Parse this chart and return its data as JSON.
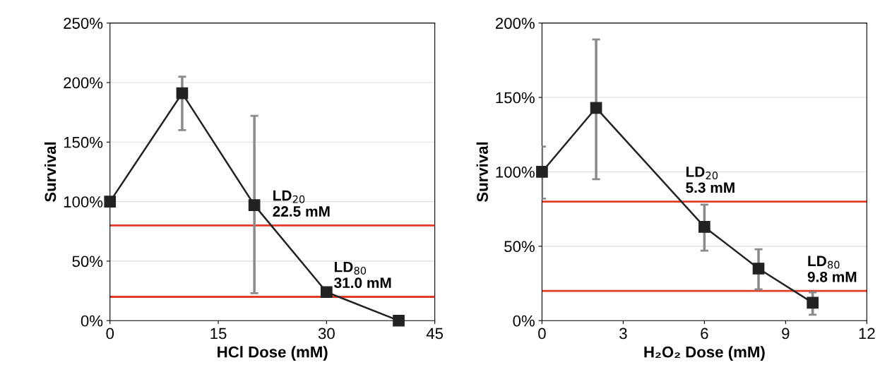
{
  "chart_data": [
    {
      "type": "line",
      "xlabel": "HCl Dose (mM)",
      "ylabel": "Survival",
      "x": [
        0,
        10,
        20,
        30,
        40
      ],
      "series": [
        {
          "color": "#222222",
          "values": [
            100,
            191,
            97,
            24,
            0
          ],
          "errors": [
            null,
            [
              160,
              205
            ],
            [
              23,
              172
            ],
            null,
            null
          ]
        }
      ],
      "marker": "square",
      "line_style": "solid",
      "grid": "y",
      "xlim": [
        0,
        45
      ],
      "xticks": [
        0,
        15,
        30,
        45
      ],
      "ylim": [
        0,
        250
      ],
      "yticks": [
        {
          "value": 0,
          "label": "0%"
        },
        {
          "value": 50,
          "label": "50%"
        },
        {
          "value": 100,
          "label": "100%"
        },
        {
          "value": 150,
          "label": "150%"
        },
        {
          "value": 200,
          "label": "200%"
        },
        {
          "value": 250,
          "label": "250%"
        }
      ],
      "ref_lines": [
        {
          "axis": "y",
          "value": 80,
          "color": "#e03c28"
        },
        {
          "axis": "y",
          "value": 20,
          "color": "#e03c28"
        }
      ],
      "annotations": [
        {
          "text": "LD$_{20}$\n22.5 mM",
          "x": 22.5,
          "y": 80
        },
        {
          "text": "LD$_{80}$\n31.0 mM",
          "x": 31.0,
          "y": 20
        }
      ]
    },
    {
      "type": "line",
      "xlabel": "H₂O₂ Dose (mM)",
      "ylabel": "Survival",
      "x": [
        0,
        2,
        6,
        8,
        10
      ],
      "series": [
        {
          "color": "#222222",
          "values": [
            100,
            143,
            63,
            35,
            12
          ],
          "errors": [
            [
              82,
              117
            ],
            [
              95,
              189
            ],
            [
              47,
              78
            ],
            [
              21,
              48
            ],
            [
              4,
              19
            ]
          ]
        }
      ],
      "marker": "square",
      "line_style": "solid",
      "grid": "y",
      "xlim": [
        0,
        12
      ],
      "xticks": [
        0,
        3,
        6,
        9,
        12
      ],
      "ylim": [
        0,
        200
      ],
      "yticks": [
        {
          "value": 0,
          "label": "0%"
        },
        {
          "value": 50,
          "label": "50%"
        },
        {
          "value": 100,
          "label": "100%"
        },
        {
          "value": 150,
          "label": "150%"
        },
        {
          "value": 200,
          "label": "200%"
        }
      ],
      "ref_lines": [
        {
          "axis": "y",
          "value": 80,
          "color": "#e03c28"
        },
        {
          "axis": "y",
          "value": 20,
          "color": "#e03c28"
        }
      ],
      "annotations": [
        {
          "text": "LD$_{20}$\n5.3 mM",
          "x": 5.3,
          "y": 80
        },
        {
          "text": "LD$_{80}$\n9.8 mM",
          "x": 9.8,
          "y": 20
        }
      ]
    }
  ]
}
